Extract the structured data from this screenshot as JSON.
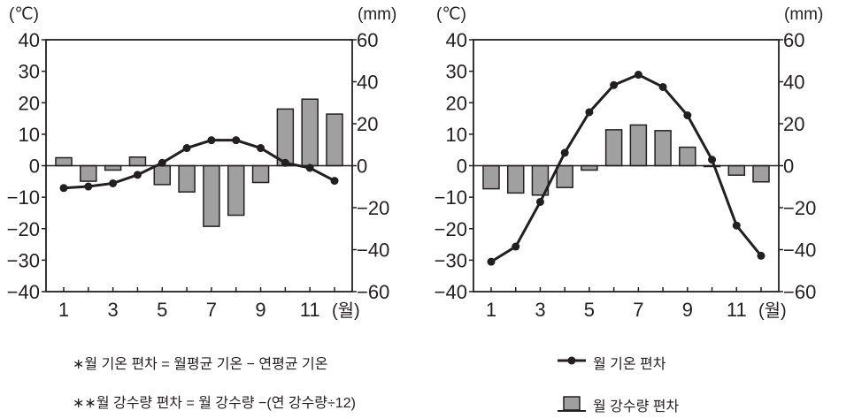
{
  "chart_data": [
    {
      "type": "bar+line",
      "title": "",
      "left_unit": "(℃)",
      "right_unit": "(mm)",
      "x_unit": "(월)",
      "months": [
        1,
        2,
        3,
        4,
        5,
        6,
        7,
        8,
        9,
        10,
        11,
        12
      ],
      "x_tick_labels": [
        "1",
        "3",
        "5",
        "7",
        "9",
        "11"
      ],
      "left_ylim": [
        -40,
        40
      ],
      "left_ticks": [
        40,
        30,
        20,
        10,
        0,
        -10,
        -20,
        -30,
        -40
      ],
      "right_ylim": [
        -60,
        60
      ],
      "right_ticks": [
        60,
        40,
        20,
        0,
        -20,
        -40,
        -60
      ],
      "series": [
        {
          "name": "월 기온 편차",
          "axis": "left",
          "kind": "line",
          "values": [
            -7.1,
            -6.6,
            -5.6,
            -2.9,
            0.9,
            5.6,
            8.1,
            8.1,
            5.6,
            0.9,
            -0.7,
            -4.8
          ]
        },
        {
          "name": "월 강수량 편차",
          "axis": "right",
          "kind": "bar",
          "values": [
            3.8,
            -7.4,
            -2.1,
            4.1,
            -9,
            -12.5,
            -28.9,
            -23.6,
            -8,
            27,
            31.7,
            24.6
          ]
        }
      ]
    },
    {
      "type": "bar+line",
      "title": "",
      "left_unit": "(℃)",
      "right_unit": "(mm)",
      "x_unit": "(월)",
      "months": [
        1,
        2,
        3,
        4,
        5,
        6,
        7,
        8,
        9,
        10,
        11,
        12
      ],
      "x_tick_labels": [
        "1",
        "3",
        "5",
        "7",
        "9",
        "11"
      ],
      "left_ylim": [
        -40,
        40
      ],
      "left_ticks": [
        40,
        30,
        20,
        10,
        0,
        -10,
        -20,
        -30,
        -40
      ],
      "right_ylim": [
        -60,
        60
      ],
      "right_ticks": [
        60,
        40,
        20,
        0,
        -20,
        -40,
        -60
      ],
      "series": [
        {
          "name": "월 기온 편차",
          "axis": "left",
          "kind": "line",
          "values": [
            -30.5,
            -25.7,
            -11.5,
            4.1,
            17,
            25.6,
            28.9,
            25,
            16,
            1.9,
            -19,
            -28.6
          ]
        },
        {
          "name": "월 강수량 편차",
          "axis": "right",
          "kind": "bar",
          "values": [
            -11,
            -13,
            -14,
            -10.4,
            -2.1,
            17.1,
            19.4,
            16.7,
            8.8,
            -0.3,
            -4.5,
            -7.7
          ]
        }
      ]
    }
  ],
  "notes": {
    "temp_definition": "∗월 기온 편차 = 월평균 기온 − 연평균 기온",
    "precip_definition": "∗∗월 강수량 편차 = 월 강수량 −(연 강수량÷12)"
  },
  "legend": {
    "line_label": "월 기온 편차",
    "bar_label": "월 강수량 편차"
  },
  "colors": {
    "bar": "#a0a0a0",
    "line": "#231f20",
    "axis": "#231f20"
  }
}
